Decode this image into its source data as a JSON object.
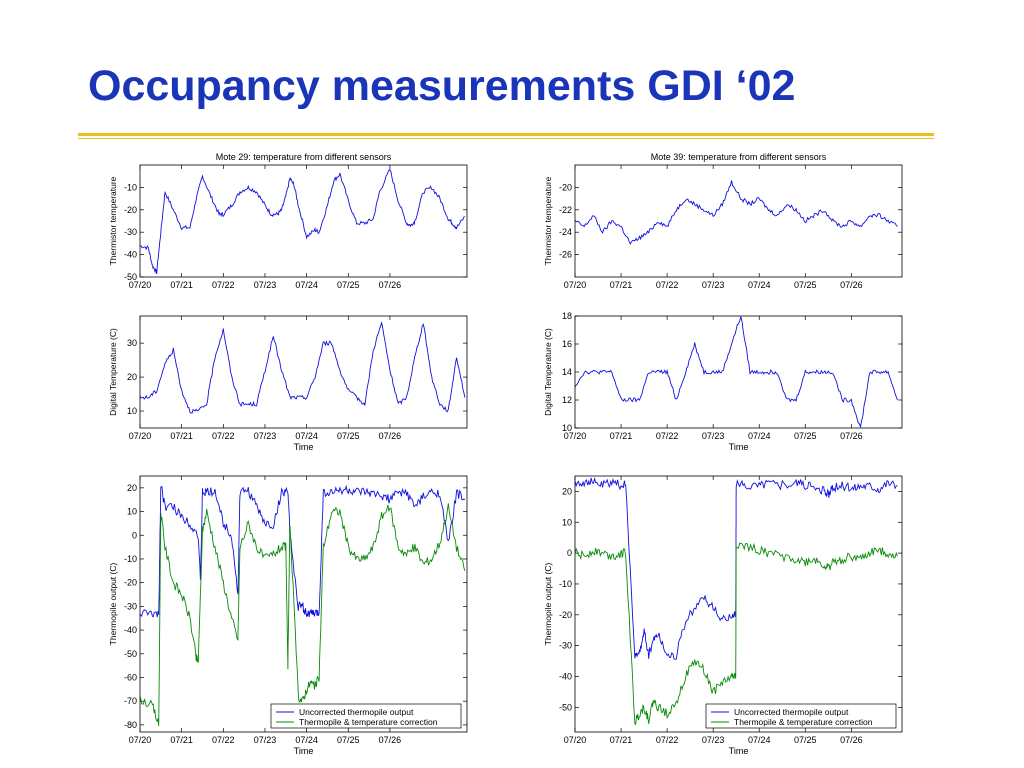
{
  "slide": {
    "title": "Occupancy measurements GDI ‘02"
  },
  "colors": {
    "title": "#1a35b8",
    "rule": "#e8c21c",
    "series_blue": "#1010e0",
    "series_green": "#0a8a0a"
  },
  "chart_data": [
    {
      "id": "mote29-thermistor",
      "type": "line",
      "title": "Mote 29: temperature from different sensors",
      "xlabel": "",
      "ylabel": "Thermistor temperature",
      "xlim": [
        0,
        7.85
      ],
      "ylim": [
        -50,
        0
      ],
      "xticks": [
        0,
        1,
        2,
        3,
        4,
        5,
        6
      ],
      "xticklabels": [
        "07/20",
        "07/21",
        "07/22",
        "07/23",
        "07/24",
        "07/25",
        "07/26"
      ],
      "yticks": [
        -50,
        -40,
        -30,
        -20,
        -10
      ],
      "yticklabels": [
        "-50",
        "-40",
        "-30",
        "-20",
        "-10"
      ],
      "legend": null,
      "series": [
        {
          "color": "#1010e0",
          "x": [
            0,
            0.2,
            0.3,
            0.4,
            0.5,
            0.6,
            0.8,
            1.0,
            1.2,
            1.35,
            1.5,
            1.7,
            1.9,
            2.0,
            2.2,
            2.4,
            2.6,
            2.8,
            3.0,
            3.15,
            3.3,
            3.4,
            3.5,
            3.6,
            3.7,
            3.8,
            4.0,
            4.2,
            4.3,
            4.5,
            4.65,
            4.8,
            5.0,
            5.2,
            5.4,
            5.6,
            5.75,
            6.0,
            6.2,
            6.4,
            6.5,
            6.6,
            6.8,
            7.0,
            7.2,
            7.4,
            7.5,
            7.6,
            7.8
          ],
          "y": [
            -36,
            -37,
            -45,
            -48,
            -30,
            -12,
            -20,
            -28,
            -28,
            -15,
            -5,
            -14,
            -22,
            -22,
            -18,
            -12,
            -10,
            -12,
            -18,
            -22,
            -22,
            -20,
            -14,
            -6,
            -9,
            -18,
            -32,
            -29,
            -30,
            -18,
            -7,
            -4,
            -16,
            -26,
            -26,
            -24,
            -12,
            -2,
            -16,
            -26,
            -27,
            -25,
            -12,
            -10,
            -15,
            -24,
            -26,
            -28,
            -23
          ]
        }
      ]
    },
    {
      "id": "mote39-thermistor",
      "type": "line",
      "title": "Mote 39: temperature from different sensors",
      "xlabel": "",
      "ylabel": "Thermistor temperature",
      "xlim": [
        0,
        7.1
      ],
      "ylim": [
        -28,
        -18
      ],
      "xticks": [
        0,
        1,
        2,
        3,
        4,
        5,
        6
      ],
      "xticklabels": [
        "07/20",
        "07/21",
        "07/22",
        "07/23",
        "07/24",
        "07/25",
        "07/26"
      ],
      "yticks": [
        -26,
        -24,
        -22,
        -20
      ],
      "yticklabels": [
        "-26",
        "-24",
        "-22",
        "-20"
      ],
      "legend": null,
      "series": [
        {
          "color": "#1010e0",
          "x": [
            0,
            0.2,
            0.4,
            0.6,
            0.8,
            1.0,
            1.2,
            1.4,
            1.6,
            1.8,
            2.0,
            2.2,
            2.4,
            2.6,
            2.8,
            3.0,
            3.2,
            3.4,
            3.6,
            3.8,
            4.0,
            4.2,
            4.4,
            4.6,
            4.8,
            5.0,
            5.2,
            5.4,
            5.6,
            5.8,
            6.0,
            6.2,
            6.4,
            6.6,
            6.8,
            7.0
          ],
          "y": [
            -23,
            -23.5,
            -22.5,
            -24,
            -23,
            -23.5,
            -25,
            -24.5,
            -24,
            -23,
            -23.5,
            -22,
            -21,
            -21.5,
            -22,
            -22.5,
            -21.5,
            -19.5,
            -21,
            -21.5,
            -21,
            -22,
            -22.5,
            -21.5,
            -22,
            -23,
            -22.5,
            -22,
            -23,
            -23.5,
            -23,
            -23.5,
            -22.5,
            -22.5,
            -23,
            -23.5
          ]
        }
      ]
    },
    {
      "id": "mote29-digital",
      "type": "line",
      "title": "",
      "xlabel": "Time",
      "ylabel": "Digital Temperature (C)",
      "xlim": [
        0,
        7.85
      ],
      "ylim": [
        5,
        38
      ],
      "xticks": [
        0,
        1,
        2,
        3,
        4,
        5,
        6
      ],
      "xticklabels": [
        "07/20",
        "07/21",
        "07/22",
        "07/23",
        "07/24",
        "07/25",
        "07/26"
      ],
      "yticks": [
        10,
        20,
        30
      ],
      "yticklabels": [
        "10",
        "20",
        "30"
      ],
      "legend": null,
      "series": [
        {
          "color": "#1010e0",
          "x": [
            0,
            0.2,
            0.4,
            0.6,
            0.8,
            1.0,
            1.2,
            1.4,
            1.6,
            1.8,
            2.0,
            2.2,
            2.4,
            2.6,
            2.8,
            3.0,
            3.2,
            3.4,
            3.6,
            3.8,
            4.0,
            4.2,
            4.4,
            4.6,
            4.8,
            5.0,
            5.2,
            5.4,
            5.6,
            5.8,
            6.0,
            6.2,
            6.4,
            6.6,
            6.8,
            7.0,
            7.2,
            7.4,
            7.6,
            7.8
          ],
          "y": [
            14,
            14,
            16,
            24,
            28,
            16,
            10,
            10,
            12,
            26,
            34,
            20,
            12,
            12,
            12,
            22,
            32,
            22,
            14,
            14,
            14,
            20,
            30,
            30,
            22,
            16,
            14,
            12,
            28,
            36,
            22,
            12,
            14,
            26,
            36,
            20,
            12,
            10,
            26,
            14
          ]
        }
      ]
    },
    {
      "id": "mote39-digital",
      "type": "line",
      "title": "",
      "xlabel": "Time",
      "ylabel": "Digital Temperature (C)",
      "xlim": [
        0,
        7.1
      ],
      "ylim": [
        10,
        18
      ],
      "xticks": [
        0,
        1,
        2,
        3,
        4,
        5,
        6
      ],
      "xticklabels": [
        "07/20",
        "07/21",
        "07/22",
        "07/23",
        "07/24",
        "07/25",
        "07/26"
      ],
      "yticks": [
        10,
        12,
        14,
        16,
        18
      ],
      "yticklabels": [
        "10",
        "12",
        "14",
        "16",
        "18"
      ],
      "legend": null,
      "series": [
        {
          "color": "#1010e0",
          "x": [
            0,
            0.2,
            0.4,
            0.6,
            0.8,
            1.0,
            1.2,
            1.4,
            1.6,
            1.8,
            2.0,
            2.2,
            2.4,
            2.6,
            2.8,
            3.0,
            3.2,
            3.4,
            3.6,
            3.8,
            4.0,
            4.2,
            4.4,
            4.6,
            4.8,
            5.0,
            5.2,
            5.4,
            5.6,
            5.8,
            6.0,
            6.2,
            6.4,
            6.6,
            6.8,
            7.0
          ],
          "y": [
            13,
            14,
            14,
            14,
            14,
            12,
            12,
            12,
            14,
            14,
            14,
            12,
            14,
            16,
            14,
            14,
            14,
            16,
            18,
            14,
            14,
            14,
            14,
            12,
            12,
            14,
            14,
            14,
            14,
            12,
            12,
            10,
            14,
            14,
            14,
            12
          ]
        }
      ]
    },
    {
      "id": "mote29-thermopile",
      "type": "line",
      "title": "",
      "xlabel": "Time",
      "ylabel": "Thermopile output (C)",
      "xlim": [
        0,
        7.85
      ],
      "ylim": [
        -83,
        25
      ],
      "xticks": [
        0,
        1,
        2,
        3,
        4,
        5,
        6
      ],
      "xticklabels": [
        "07/20",
        "07/21",
        "07/22",
        "07/23",
        "07/24",
        "07/25",
        "07/26"
      ],
      "yticks": [
        -80,
        -70,
        -60,
        -50,
        -40,
        -30,
        -20,
        -10,
        0,
        10,
        20
      ],
      "yticklabels": [
        "-80",
        "-70",
        "-60",
        "-50",
        "-40",
        "-30",
        "-20",
        "-10",
        "0",
        "10",
        "20"
      ],
      "legend": {
        "position": "bottom-right",
        "entries": [
          "Uncorrected thermopile output",
          "Thermopile & temperature correction"
        ]
      },
      "series": [
        {
          "color": "#1010e0",
          "x": [
            0,
            0.3,
            0.45,
            0.5,
            0.6,
            0.8,
            1.0,
            1.2,
            1.4,
            1.45,
            1.5,
            1.6,
            1.8,
            2.0,
            2.2,
            2.35,
            2.4,
            2.6,
            2.8,
            3.0,
            3.2,
            3.4,
            3.55,
            3.6,
            3.8,
            3.9,
            4.0,
            4.1,
            4.2,
            4.3,
            4.4,
            4.6,
            4.8,
            5.0,
            5.2,
            5.4,
            5.6,
            5.8,
            6.0,
            6.2,
            6.4,
            6.6,
            6.8,
            7.0,
            7.2,
            7.4,
            7.6,
            7.8
          ],
          "y": [
            -33,
            -33,
            -34,
            22,
            12,
            12,
            8,
            5,
            0,
            -20,
            18,
            18,
            19,
            5,
            0,
            -25,
            18,
            19,
            12,
            5,
            4,
            18,
            19,
            0,
            -30,
            -30,
            -33,
            -33,
            -33,
            -33,
            18,
            18,
            19,
            19,
            18,
            18,
            17,
            17,
            15,
            18,
            18,
            12,
            16,
            18,
            18,
            -4,
            18,
            15
          ]
        },
        {
          "color": "#0a8a0a",
          "x": [
            0,
            0.3,
            0.45,
            0.5,
            0.6,
            0.8,
            1.0,
            1.2,
            1.35,
            1.4,
            1.5,
            1.6,
            1.8,
            2.0,
            2.2,
            2.35,
            2.4,
            2.6,
            2.8,
            3.0,
            3.2,
            3.4,
            3.5,
            3.55,
            3.6,
            3.8,
            3.9,
            4.0,
            4.1,
            4.2,
            4.3,
            4.4,
            4.6,
            4.8,
            5.0,
            5.2,
            5.4,
            5.6,
            5.8,
            6.0,
            6.2,
            6.4,
            6.6,
            6.8,
            7.0,
            7.2,
            7.4,
            7.6,
            7.8
          ],
          "y": [
            -69,
            -72,
            -80,
            10,
            -5,
            -20,
            -25,
            -35,
            -52,
            -53,
            2,
            10,
            -5,
            -20,
            -35,
            -44,
            -5,
            5,
            -5,
            -10,
            -8,
            -5,
            -5,
            -55,
            5,
            -68,
            -70,
            -65,
            -62,
            -64,
            -60,
            -5,
            10,
            10,
            -5,
            -10,
            -10,
            -5,
            8,
            12,
            -5,
            -8,
            -5,
            -12,
            -10,
            -3,
            12,
            -5,
            -15
          ]
        }
      ]
    },
    {
      "id": "mote39-thermopile",
      "type": "line",
      "title": "",
      "xlabel": "Time",
      "ylabel": "Thermopile output (C)",
      "xlim": [
        0,
        7.1
      ],
      "ylim": [
        -58,
        25
      ],
      "xticks": [
        0,
        1,
        2,
        3,
        4,
        5,
        6
      ],
      "xticklabels": [
        "07/20",
        "07/21",
        "07/22",
        "07/23",
        "07/24",
        "07/25",
        "07/26"
      ],
      "yticks": [
        -50,
        -40,
        -30,
        -20,
        -10,
        0,
        10,
        20
      ],
      "yticklabels": [
        "-50",
        "-40",
        "-30",
        "-20",
        "-10",
        "0",
        "10",
        "20"
      ],
      "legend": {
        "position": "bottom-right",
        "entries": [
          "Uncorrected thermopile output",
          "Thermopile & temperature correction"
        ]
      },
      "series": [
        {
          "color": "#1010e0",
          "x": [
            0,
            0.2,
            0.4,
            0.6,
            0.8,
            1.0,
            1.1,
            1.3,
            1.4,
            1.5,
            1.6,
            1.7,
            1.8,
            2.0,
            2.2,
            2.4,
            2.6,
            2.8,
            3.0,
            3.2,
            3.4,
            3.49,
            3.5,
            3.7,
            4.0,
            4.2,
            4.5,
            4.8,
            5.0,
            5.2,
            5.4,
            5.5,
            5.6,
            5.8,
            6.0,
            6.2,
            6.4,
            6.6,
            6.8,
            7.0
          ],
          "y": [
            23,
            23,
            23,
            22,
            23,
            22,
            22,
            -33,
            -33,
            -25,
            -33,
            -28,
            -26,
            -33,
            -33,
            -22,
            -18,
            -14,
            -18,
            -22,
            -20,
            -20,
            22,
            22,
            22,
            23,
            22,
            23,
            22,
            21,
            20,
            19,
            21,
            22,
            21,
            22,
            22,
            21,
            23,
            22
          ]
        },
        {
          "color": "#0a8a0a",
          "x": [
            0,
            0.2,
            0.4,
            0.6,
            0.8,
            1.0,
            1.1,
            1.3,
            1.4,
            1.5,
            1.6,
            1.7,
            1.8,
            2.0,
            2.2,
            2.4,
            2.6,
            2.8,
            3.0,
            3.2,
            3.4,
            3.49,
            3.5,
            3.7,
            4.0,
            4.2,
            4.5,
            4.8,
            5.0,
            5.2,
            5.4,
            5.5,
            5.6,
            5.8,
            6.0,
            6.2,
            6.4,
            6.6,
            6.8,
            7.0
          ],
          "y": [
            0,
            -1,
            1,
            0,
            -1,
            0,
            0,
            -55,
            -52,
            -50,
            -54,
            -48,
            -50,
            -52,
            -48,
            -40,
            -35,
            -38,
            -45,
            -42,
            -40,
            -40,
            3,
            2,
            1,
            0,
            -1,
            -2,
            -3,
            -2,
            -4,
            -5,
            -3,
            -2,
            -1,
            -2,
            0,
            1,
            0,
            -1
          ]
        }
      ]
    }
  ]
}
